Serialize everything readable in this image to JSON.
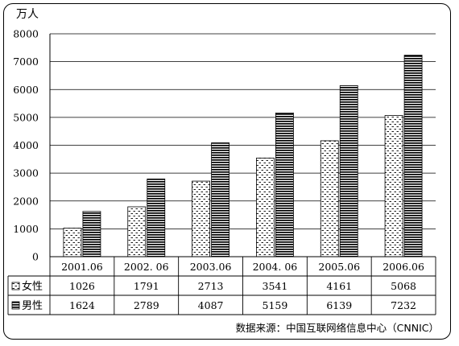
{
  "chart_data": {
    "type": "bar",
    "title": "",
    "ylabel": "万人",
    "xlabel": "",
    "ylim": [
      0,
      8000
    ],
    "yticks": [
      "0",
      "1000",
      "2000",
      "3000",
      "4000",
      "5000",
      "6000",
      "7000",
      "8000"
    ],
    "categories": [
      "2001.06",
      "2002. 06",
      "2003.06",
      "2004. 06",
      "2005.06",
      "2006.06"
    ],
    "grid": "horizontal",
    "legend": "data-table",
    "series": [
      {
        "name": "女性",
        "values": [
          1026,
          1791,
          2713,
          3541,
          4161,
          5068
        ],
        "pattern": "dashes"
      },
      {
        "name": "男性",
        "values": [
          1624,
          2789,
          4087,
          5159,
          6139,
          7232
        ],
        "pattern": "stripes"
      }
    ],
    "source": "数据来源：中国互联网络信息中心（CNNIC）"
  }
}
